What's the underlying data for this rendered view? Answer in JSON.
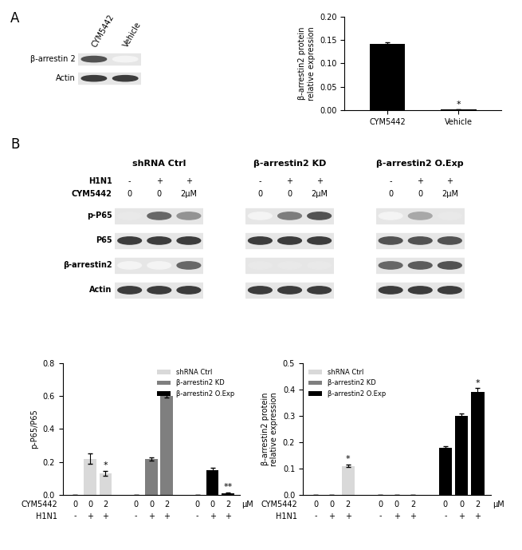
{
  "panel_labels": [
    "A",
    "B"
  ],
  "blot_A": {
    "lanes": [
      "CYM5442",
      "Vehicle"
    ],
    "row_labels": [
      "β-arrestin 2",
      "Actin"
    ],
    "band_intensity": [
      [
        0.8,
        0.05
      ],
      [
        0.9,
        0.9
      ]
    ]
  },
  "blots_B": {
    "row_labels": [
      "p-P65",
      "P65",
      "β-arrestin2",
      "Actin"
    ],
    "header_labels": [
      "H1N1",
      "CYM5442"
    ],
    "blots": [
      {
        "title": "shRNA Ctrl",
        "header_values": [
          [
            "-",
            "+",
            "+"
          ],
          [
            "0",
            "0",
            "2μM"
          ]
        ],
        "band_intensity": [
          [
            0.1,
            0.7,
            0.5
          ],
          [
            0.9,
            0.9,
            0.9
          ],
          [
            0.05,
            0.05,
            0.7
          ],
          [
            0.9,
            0.9,
            0.9
          ]
        ]
      },
      {
        "title": "β-arrestin2 KD",
        "header_values": [
          [
            "-",
            "+",
            "+"
          ],
          [
            "0",
            "0",
            "2μM"
          ]
        ],
        "band_intensity": [
          [
            0.05,
            0.6,
            0.8
          ],
          [
            0.9,
            0.9,
            0.9
          ],
          [
            0.1,
            0.1,
            0.1
          ],
          [
            0.9,
            0.9,
            0.9
          ]
        ]
      },
      {
        "title": "β-arrestin2 O.Exp",
        "header_values": [
          [
            "-",
            "+",
            "+"
          ],
          [
            "0",
            "0",
            "2μM"
          ]
        ],
        "band_intensity": [
          [
            0.05,
            0.4,
            0.1
          ],
          [
            0.8,
            0.8,
            0.8
          ],
          [
            0.7,
            0.75,
            0.8
          ],
          [
            0.9,
            0.9,
            0.9
          ]
        ]
      }
    ]
  },
  "chart_data": [
    {
      "type": "bar",
      "categories": [
        "CYM5442",
        "Vehicle"
      ],
      "values": [
        0.142,
        0.001
      ],
      "errors": [
        0.003,
        0.0
      ],
      "annotations": [
        null,
        "*"
      ],
      "color": "#000000",
      "ylabel": "β-arrestin2 protein\nrelative expression",
      "ylim": [
        0,
        0.2
      ],
      "yticks": [
        {
          "value": 0,
          "label": "0.00"
        },
        {
          "value": 0.05,
          "label": "0.05"
        },
        {
          "value": 0.1,
          "label": "0.10"
        },
        {
          "value": 0.15,
          "label": "0.15"
        },
        {
          "value": 0.2,
          "label": "0.20"
        }
      ]
    },
    {
      "type": "grouped_bar",
      "ylabel": "p-P65/P65",
      "ylim": [
        0,
        0.8
      ],
      "yticks": [
        0.0,
        0.2,
        0.4,
        0.6,
        0.8
      ],
      "legend": "upper right",
      "x_rows": [
        {
          "label": "CYM5442",
          "values": [
            0,
            0,
            2,
            0,
            0,
            2,
            0,
            0,
            2
          ]
        },
        {
          "label": "H1N1",
          "values": [
            "-",
            "+",
            "+",
            "-",
            "+",
            "+",
            "-",
            "+",
            "+"
          ]
        }
      ],
      "x_unit": "μM",
      "series": [
        {
          "name": "shRNA Ctrl",
          "color": "#d9d9d9",
          "values": [
            0,
            0.22,
            0.13
          ],
          "errors": [
            0,
            0.03,
            0.015
          ],
          "annotations": [
            null,
            null,
            "*"
          ]
        },
        {
          "name": "β-arrestin2 KD",
          "color": "#7f7f7f",
          "values": [
            0,
            0.22,
            0.6
          ],
          "errors": [
            0,
            0.01,
            0.01
          ],
          "annotations": [
            null,
            null,
            null
          ]
        },
        {
          "name": "β-arrestin2 O.Exp",
          "color": "#000000",
          "values": [
            0,
            0.15,
            0.01
          ],
          "errors": [
            0,
            0.015,
            0.005
          ],
          "annotations": [
            null,
            null,
            "**"
          ]
        }
      ]
    },
    {
      "type": "grouped_bar",
      "ylabel": "β-arrestin2 protein\nrelative expression",
      "ylim": [
        0,
        0.5
      ],
      "yticks": [
        0.0,
        0.1,
        0.2,
        0.3,
        0.4,
        0.5
      ],
      "legend": "upper left",
      "x_rows": [
        {
          "label": "CYM5442",
          "values": [
            0,
            0,
            2,
            0,
            0,
            2,
            0,
            0,
            2
          ]
        },
        {
          "label": "H1N1",
          "values": [
            "-",
            "+",
            "+",
            "-",
            "+",
            "+",
            "-",
            "+",
            "+"
          ]
        }
      ],
      "x_unit": "μM",
      "series": [
        {
          "name": "shRNA Ctrl",
          "color": "#d9d9d9",
          "values": [
            0,
            0,
            0.11
          ],
          "errors": [
            0,
            0,
            0.005
          ],
          "annotations": [
            null,
            null,
            "*"
          ]
        },
        {
          "name": "β-arrestin2 KD",
          "color": "#7f7f7f",
          "values": [
            0,
            0,
            0
          ],
          "errors": [
            0,
            0,
            0
          ],
          "annotations": [
            null,
            null,
            null
          ]
        },
        {
          "name": "β-arrestin2 O.Exp",
          "color": "#000000",
          "values": [
            0.18,
            0.3,
            0.39
          ],
          "errors": [
            0.005,
            0.01,
            0.015
          ],
          "annotations": [
            null,
            null,
            "*"
          ]
        }
      ]
    }
  ]
}
